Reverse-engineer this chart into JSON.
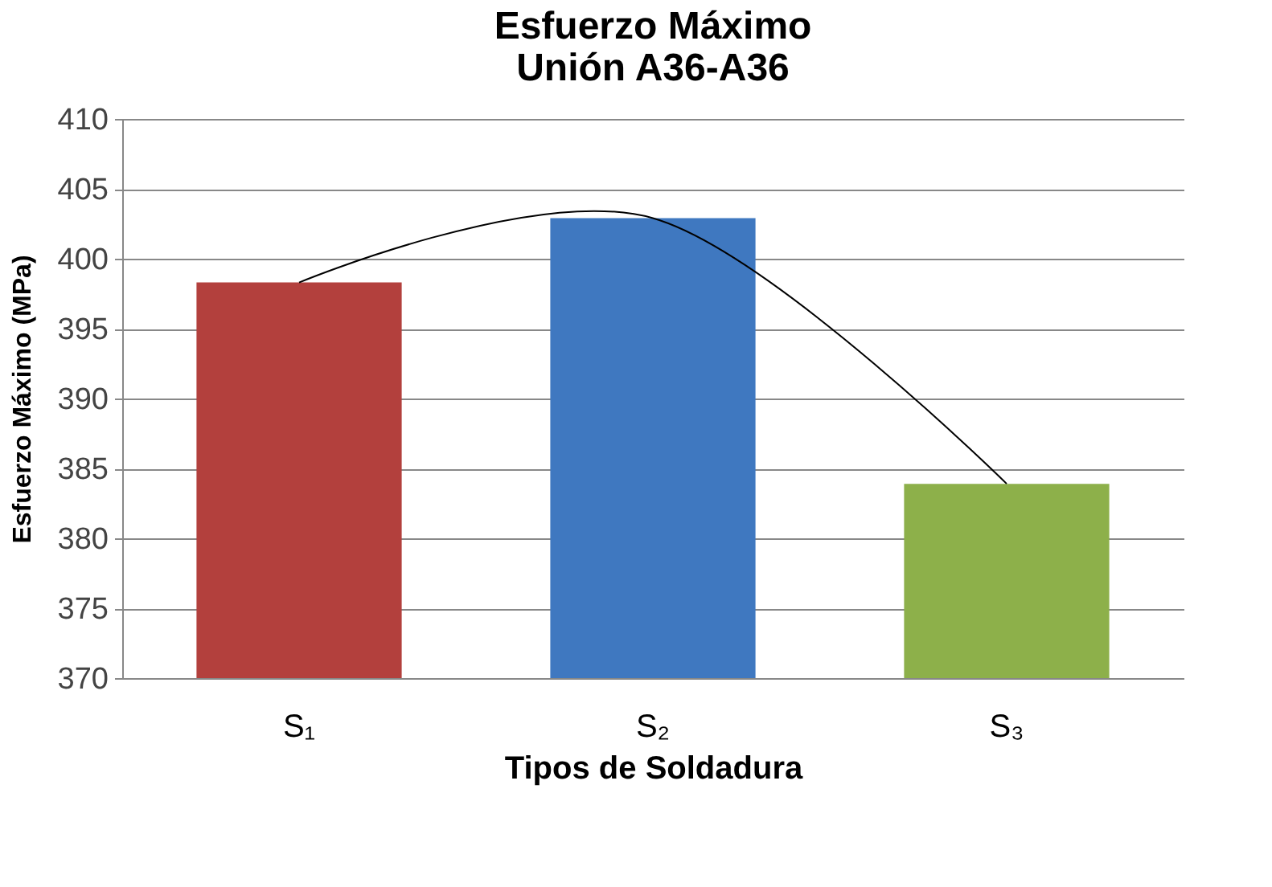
{
  "chart_data": {
    "type": "bar",
    "title": [
      "Esfuerzo Máximo",
      "Unión A36-A36"
    ],
    "xlabel": "Tipos de Soldadura",
    "ylabel": "Esfuerzo Máximo (MPa)",
    "categories": [
      "S₁",
      "S₂",
      "S₃"
    ],
    "series": [
      {
        "colors": [
          "#b3403d",
          "#3f78c0",
          "#8db04a"
        ],
        "values": [
          398.3,
          402.9,
          383.9
        ]
      },
      {
        "type": "line",
        "color": "#000000",
        "values": [
          398.3,
          402.9,
          383.9
        ]
      }
    ],
    "ylim": [
      370,
      410
    ],
    "yticks": [
      370,
      375,
      380,
      385,
      390,
      395,
      400,
      405,
      410
    ],
    "grid": "y"
  }
}
